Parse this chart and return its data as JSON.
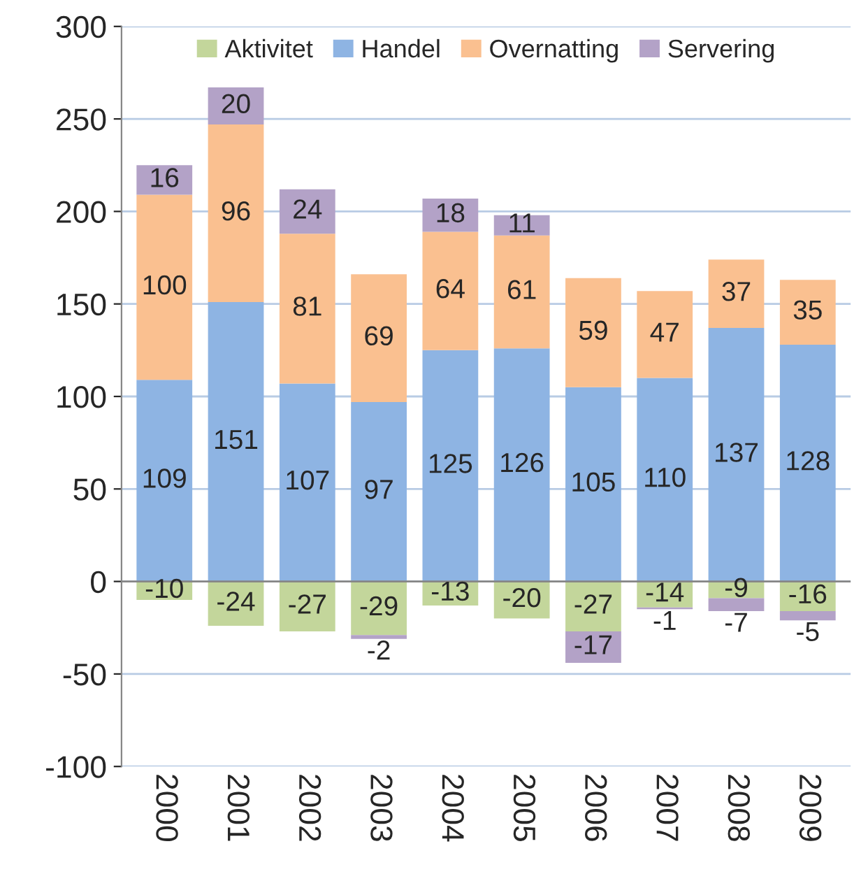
{
  "chart_data": {
    "type": "bar",
    "stacked": true,
    "categories": [
      "2000",
      "2001",
      "2002",
      "2003",
      "2004",
      "2005",
      "2006",
      "2007",
      "2008",
      "2009"
    ],
    "series": [
      {
        "name": "Aktivitet",
        "color": "#c3d69b",
        "values": [
          -10,
          -24,
          -27,
          -29,
          -13,
          -20,
          -27,
          -14,
          -9,
          -16
        ]
      },
      {
        "name": "Handel",
        "color": "#8eb4e3",
        "values": [
          109,
          151,
          107,
          97,
          125,
          126,
          105,
          110,
          137,
          128
        ]
      },
      {
        "name": "Overnatting",
        "color": "#fac090",
        "values": [
          100,
          96,
          81,
          69,
          64,
          61,
          59,
          47,
          37,
          35
        ]
      },
      {
        "name": "Servering",
        "color": "#b3a2c7",
        "values": [
          16,
          20,
          24,
          -2,
          18,
          11,
          -17,
          -1,
          -7,
          -5
        ]
      }
    ],
    "ylim": [
      -100,
      300
    ],
    "yticks": [
      -100,
      -50,
      0,
      50,
      100,
      150,
      200,
      250,
      300
    ],
    "grid": "y",
    "legend": "top",
    "data_labels": true
  }
}
